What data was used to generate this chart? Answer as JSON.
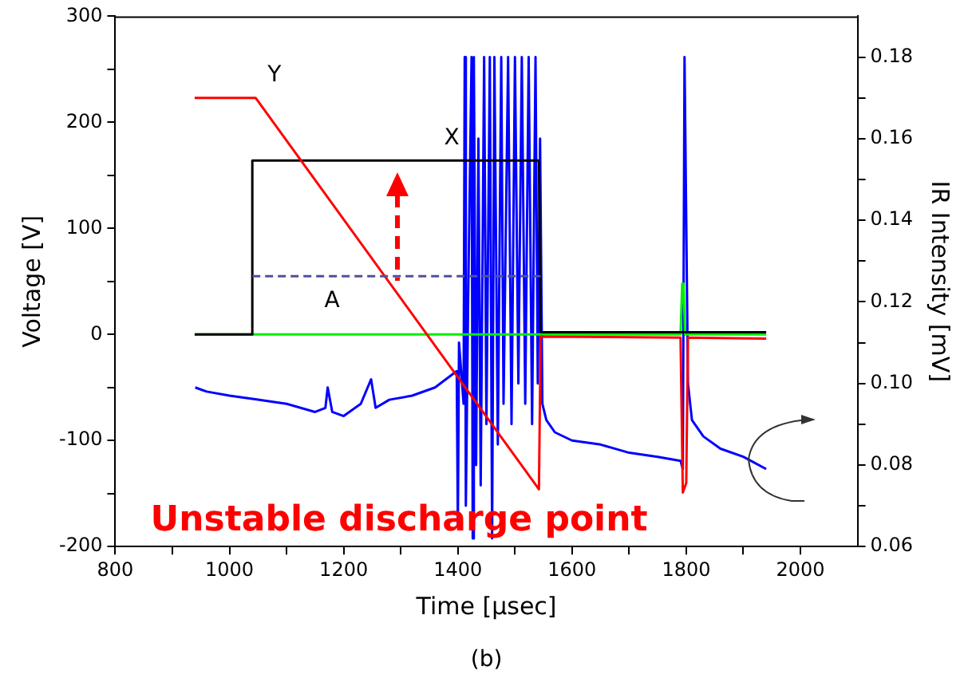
{
  "chart_data": {
    "type": "line",
    "xlabel": "Time [μsec]",
    "ylabel": "Voltage [V]",
    "y2label": "IR Intensity [mV]",
    "xlim": [
      800,
      2100
    ],
    "xticks": [
      800,
      {
        "value": 900,
        "label": null
      },
      1000,
      {
        "value": 1100,
        "label": null
      },
      1200,
      {
        "value": 1300,
        "label": null
      },
      1400,
      {
        "value": 1500,
        "label": null
      },
      1600,
      {
        "value": 1700,
        "label": null
      },
      1800,
      {
        "value": 1900,
        "label": null
      },
      2000
    ],
    "ylim": [
      -200,
      300
    ],
    "yticks": [
      -200,
      {
        "value": -150,
        "label": null
      },
      -100,
      {
        "value": -50,
        "label": null
      },
      0,
      {
        "value": 50,
        "label": null
      },
      100,
      {
        "value": 150,
        "label": null
      },
      200,
      {
        "value": 250,
        "label": null
      },
      300
    ],
    "y2lim": [
      0.06,
      0.19
    ],
    "y2ticks": [
      {
        "value": 0.06,
        "label": "0.06"
      },
      {
        "value": 0.07,
        "label": null
      },
      {
        "value": 0.08,
        "label": "0.08"
      },
      {
        "value": 0.09,
        "label": null
      },
      {
        "value": 0.1,
        "label": "0.10"
      },
      {
        "value": 0.11,
        "label": null
      },
      {
        "value": 0.12,
        "label": "0.12"
      },
      {
        "value": 0.13,
        "label": null
      },
      {
        "value": 0.14,
        "label": "0.14"
      },
      {
        "value": 0.15,
        "label": null
      },
      {
        "value": 0.16,
        "label": "0.16"
      },
      {
        "value": 0.17,
        "label": null
      },
      {
        "value": 0.18,
        "label": "0.18"
      }
    ],
    "marker": "none",
    "grid": false,
    "legend": false,
    "series": [
      {
        "name": "Y",
        "color": "#ff0000",
        "x": [
          939,
          1046,
          1542,
          1545,
          1790,
          1794,
          1800,
          1803,
          1940
        ],
        "values": [
          223,
          223,
          -146,
          -2,
          -3,
          -149,
          -140,
          -3,
          -4
        ]
      },
      {
        "name": "X",
        "color": "#000000",
        "x": [
          939,
          1040,
          1040,
          1542,
          1545,
          1940
        ],
        "values": [
          0,
          0,
          164,
          164,
          2,
          2
        ]
      },
      {
        "name": "A",
        "color": "#5050a0",
        "line_style": "dashed",
        "x": [
          1040,
          1545
        ],
        "values": [
          55,
          55
        ]
      },
      {
        "color": "#00ee00",
        "x": [
          939,
          1790,
          1793,
          1795,
          1798,
          1940
        ],
        "values": [
          0,
          0,
          48,
          48,
          0,
          0
        ]
      },
      {
        "color": "#0000ff",
        "axis": "y2",
        "x": [
          940,
          960,
          1000,
          1050,
          1100,
          1150,
          1168,
          1172,
          1180,
          1200,
          1230,
          1248,
          1256,
          1280,
          1320,
          1360,
          1398,
          1400,
          1402,
          1410,
          1412,
          1414,
          1418,
          1424,
          1426,
          1428,
          1432,
          1436,
          1440,
          1446,
          1450,
          1456,
          1460,
          1464,
          1470,
          1476,
          1480,
          1488,
          1494,
          1500,
          1506,
          1512,
          1518,
          1524,
          1530,
          1536,
          1540,
          1544,
          1548,
          1555,
          1570,
          1600,
          1650,
          1700,
          1750,
          1790,
          1794,
          1797,
          1800,
          1803,
          1810,
          1830,
          1860,
          1900,
          1940
        ],
        "values": [
          0.099,
          0.098,
          0.097,
          0.096,
          0.095,
          0.093,
          0.094,
          0.099,
          0.093,
          0.092,
          0.095,
          0.101,
          0.094,
          0.096,
          0.097,
          0.099,
          0.103,
          0.065,
          0.11,
          0.095,
          0.18,
          0.07,
          0.12,
          0.18,
          0.062,
          0.18,
          0.08,
          0.16,
          0.075,
          0.18,
          0.09,
          0.18,
          0.062,
          0.18,
          0.085,
          0.18,
          0.095,
          0.18,
          0.09,
          0.18,
          0.1,
          0.18,
          0.095,
          0.18,
          0.09,
          0.18,
          0.1,
          0.16,
          0.095,
          0.091,
          0.088,
          0.086,
          0.085,
          0.083,
          0.082,
          0.081,
          0.079,
          0.18,
          0.14,
          0.1,
          0.091,
          0.087,
          0.084,
          0.082,
          0.079
        ]
      }
    ],
    "annotations": [
      "Unstable discharge point",
      "(b)"
    ]
  }
}
